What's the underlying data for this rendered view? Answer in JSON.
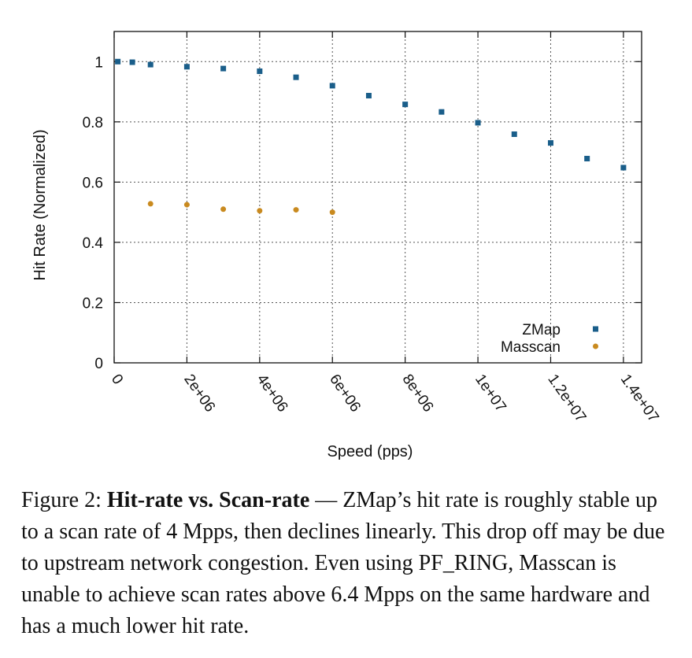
{
  "chart_data": {
    "type": "scatter",
    "xlabel": "Speed (pps)",
    "ylabel": "Hit Rate (Normalized)",
    "xlim": [
      0,
      14500000
    ],
    "ylim": [
      0,
      1.1
    ],
    "x_ticks": [
      {
        "value": 0,
        "label": "0"
      },
      {
        "value": 2000000,
        "label": "2e+06"
      },
      {
        "value": 4000000,
        "label": "4e+06"
      },
      {
        "value": 6000000,
        "label": "6e+06"
      },
      {
        "value": 8000000,
        "label": "8e+06"
      },
      {
        "value": 10000000,
        "label": "1e+07"
      },
      {
        "value": 12000000,
        "label": "1.2e+07"
      },
      {
        "value": 14000000,
        "label": "1.4e+07"
      }
    ],
    "y_ticks": [
      {
        "value": 0,
        "label": "0"
      },
      {
        "value": 0.2,
        "label": "0.2"
      },
      {
        "value": 0.4,
        "label": "0.4"
      },
      {
        "value": 0.6,
        "label": "0.6"
      },
      {
        "value": 0.8,
        "label": "0.8"
      },
      {
        "value": 1,
        "label": "1"
      }
    ],
    "grid": true,
    "legend_position": "bottom-right",
    "series": [
      {
        "name": "ZMap",
        "marker": "square",
        "color": "#1a5e8a",
        "x": [
          100000,
          500000,
          1000000,
          2000000,
          3000000,
          4000000,
          5000000,
          6000000,
          7000000,
          8000000,
          9000000,
          10000000,
          11000000,
          12000000,
          13000000,
          14000000
        ],
        "y": [
          1.0,
          0.998,
          0.99,
          0.983,
          0.977,
          0.968,
          0.948,
          0.92,
          0.887,
          0.858,
          0.833,
          0.797,
          0.759,
          0.73,
          0.678,
          0.648
        ]
      },
      {
        "name": "Masscan",
        "marker": "circle",
        "color": "#c98a1f",
        "x": [
          1000000,
          2000000,
          3000000,
          4000000,
          5000000,
          6000000
        ],
        "y": [
          0.528,
          0.525,
          0.51,
          0.505,
          0.508,
          0.5
        ]
      }
    ]
  },
  "caption": {
    "prefix": "Figure 2: ",
    "bold": "Hit-rate vs. Scan-rate",
    "text": " — ZMap’s hit rate is roughly stable up to a scan rate of 4 Mpps, then declines linearly. This drop off may be due to upstream network congestion.  Even using PF_RING, Masscan is unable to achieve scan rates above 6.4 Mpps on the same hardware and has a much lower hit rate."
  }
}
